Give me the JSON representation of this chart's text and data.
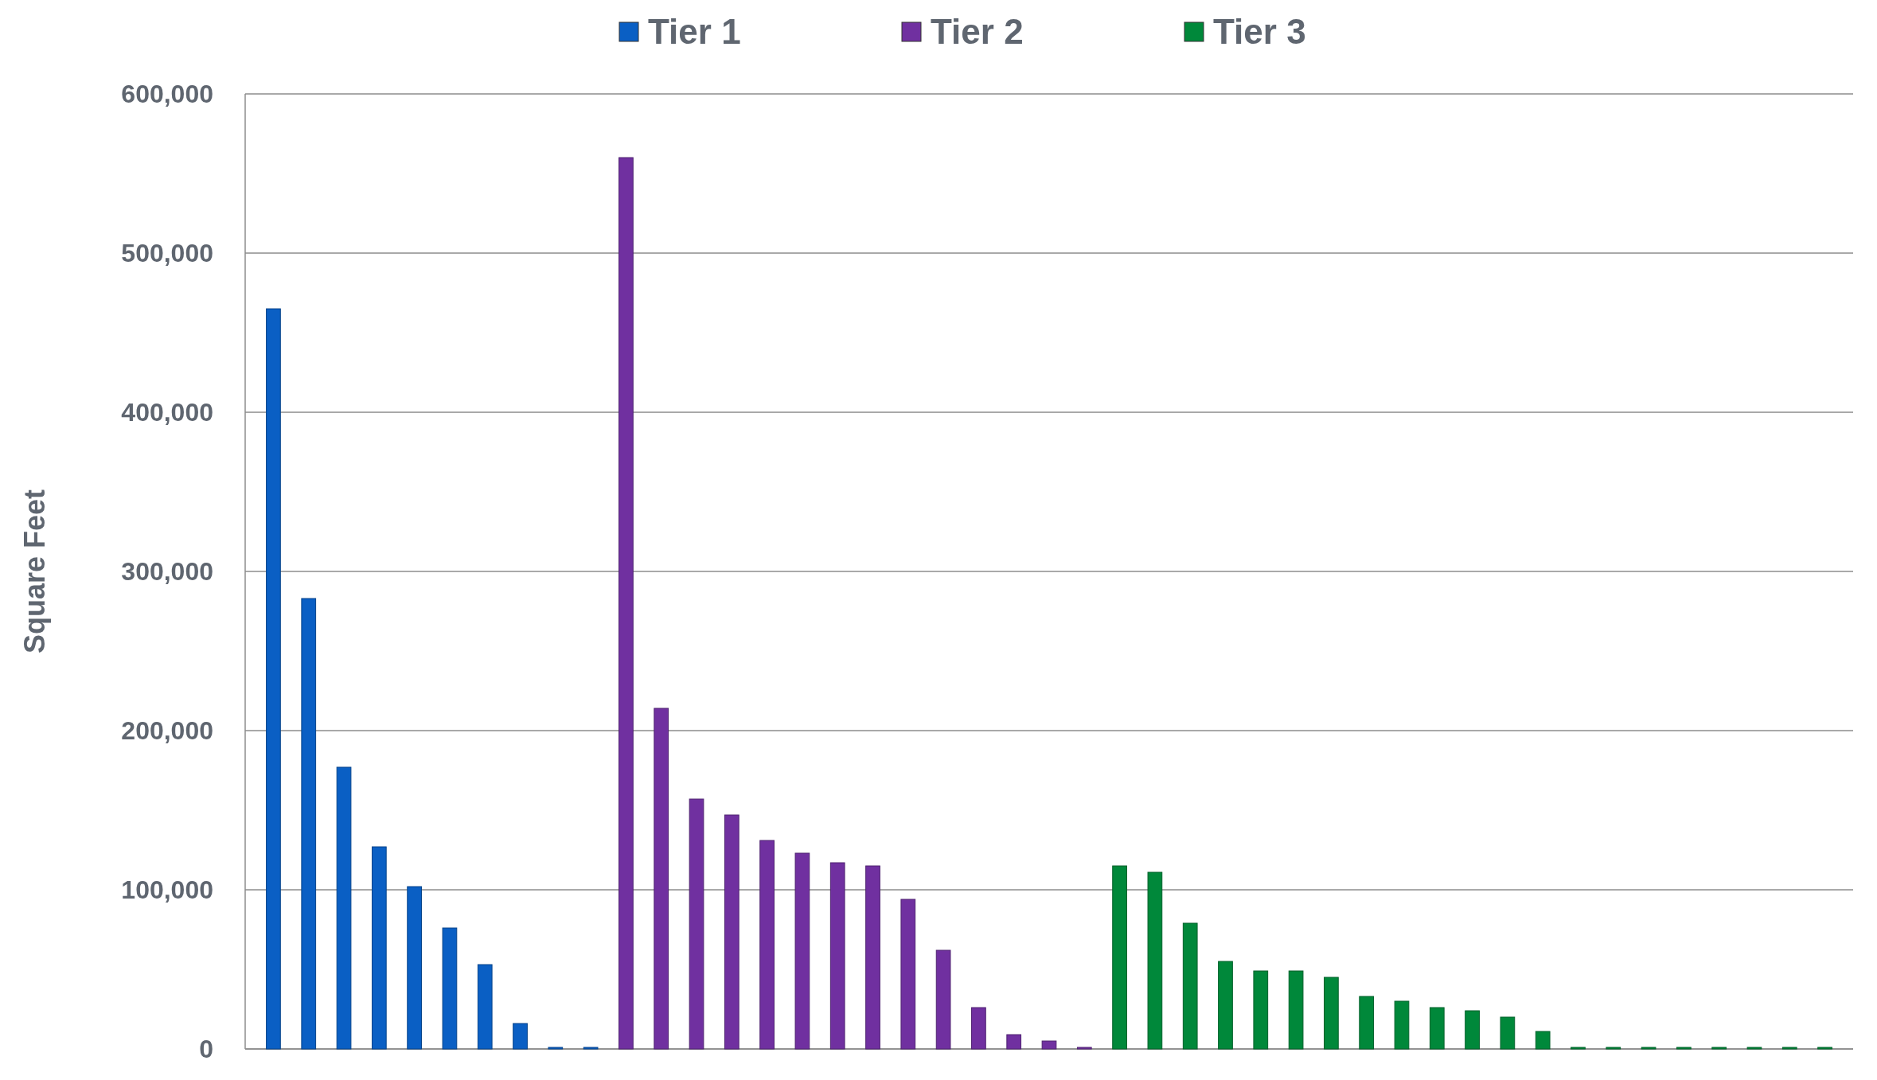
{
  "chart_data": {
    "type": "bar",
    "ylabel": "Square Feet",
    "categories": [
      null,
      null,
      null,
      null,
      null,
      null,
      null,
      null,
      null,
      null,
      null,
      null,
      null,
      null,
      null,
      null,
      null,
      null,
      null,
      null,
      null,
      null,
      null,
      null,
      null,
      null,
      null,
      null,
      null,
      null,
      null,
      null,
      null,
      null,
      null,
      null,
      null,
      null,
      null,
      null,
      null,
      null,
      null,
      null,
      null
    ],
    "series": [
      {
        "name": "Tier 1",
        "color": "#0a5fc4",
        "values": [
          465000,
          283000,
          177000,
          127000,
          102000,
          76000,
          53000,
          16000,
          1000,
          1000,
          null,
          null,
          null,
          null,
          null,
          null,
          null,
          null,
          null,
          null,
          null,
          null,
          null,
          null,
          null,
          null,
          null,
          null,
          null,
          null,
          null,
          null,
          null,
          null,
          null,
          null,
          null,
          null,
          null,
          null,
          null,
          null,
          null,
          null,
          null
        ]
      },
      {
        "name": "Tier 2",
        "color": "#7030a0",
        "values": [
          null,
          null,
          null,
          null,
          null,
          null,
          null,
          null,
          null,
          null,
          560000,
          214000,
          157000,
          147000,
          131000,
          123000,
          117000,
          115000,
          94000,
          62000,
          26000,
          9000,
          5000,
          1000,
          null,
          null,
          null,
          null,
          null,
          null,
          null,
          null,
          null,
          null,
          null,
          null,
          null,
          null,
          null,
          null,
          null,
          null,
          null,
          null,
          null
        ]
      },
      {
        "name": "Tier 3",
        "color": "#00883a",
        "values": [
          null,
          null,
          null,
          null,
          null,
          null,
          null,
          null,
          null,
          null,
          null,
          null,
          null,
          null,
          null,
          null,
          null,
          null,
          null,
          null,
          null,
          null,
          null,
          null,
          115000,
          111000,
          79000,
          55000,
          49000,
          49000,
          45000,
          33000,
          30000,
          26000,
          24000,
          20000,
          11000,
          1000,
          1000,
          1000,
          1000,
          1000,
          1000,
          1000,
          1000
        ]
      }
    ],
    "ylim": [
      0,
      600000
    ],
    "yticks": [
      0,
      {
        "value": 100000,
        "label": "100,000"
      },
      {
        "value": 200000,
        "label": "200,000"
      },
      {
        "value": 300000,
        "label": "300,000"
      },
      {
        "value": 400000,
        "label": "400,000"
      },
      {
        "value": 500000,
        "label": "500,000"
      },
      {
        "value": 600000,
        "label": "600,000"
      }
    ],
    "grid": "y",
    "legend": "top"
  }
}
